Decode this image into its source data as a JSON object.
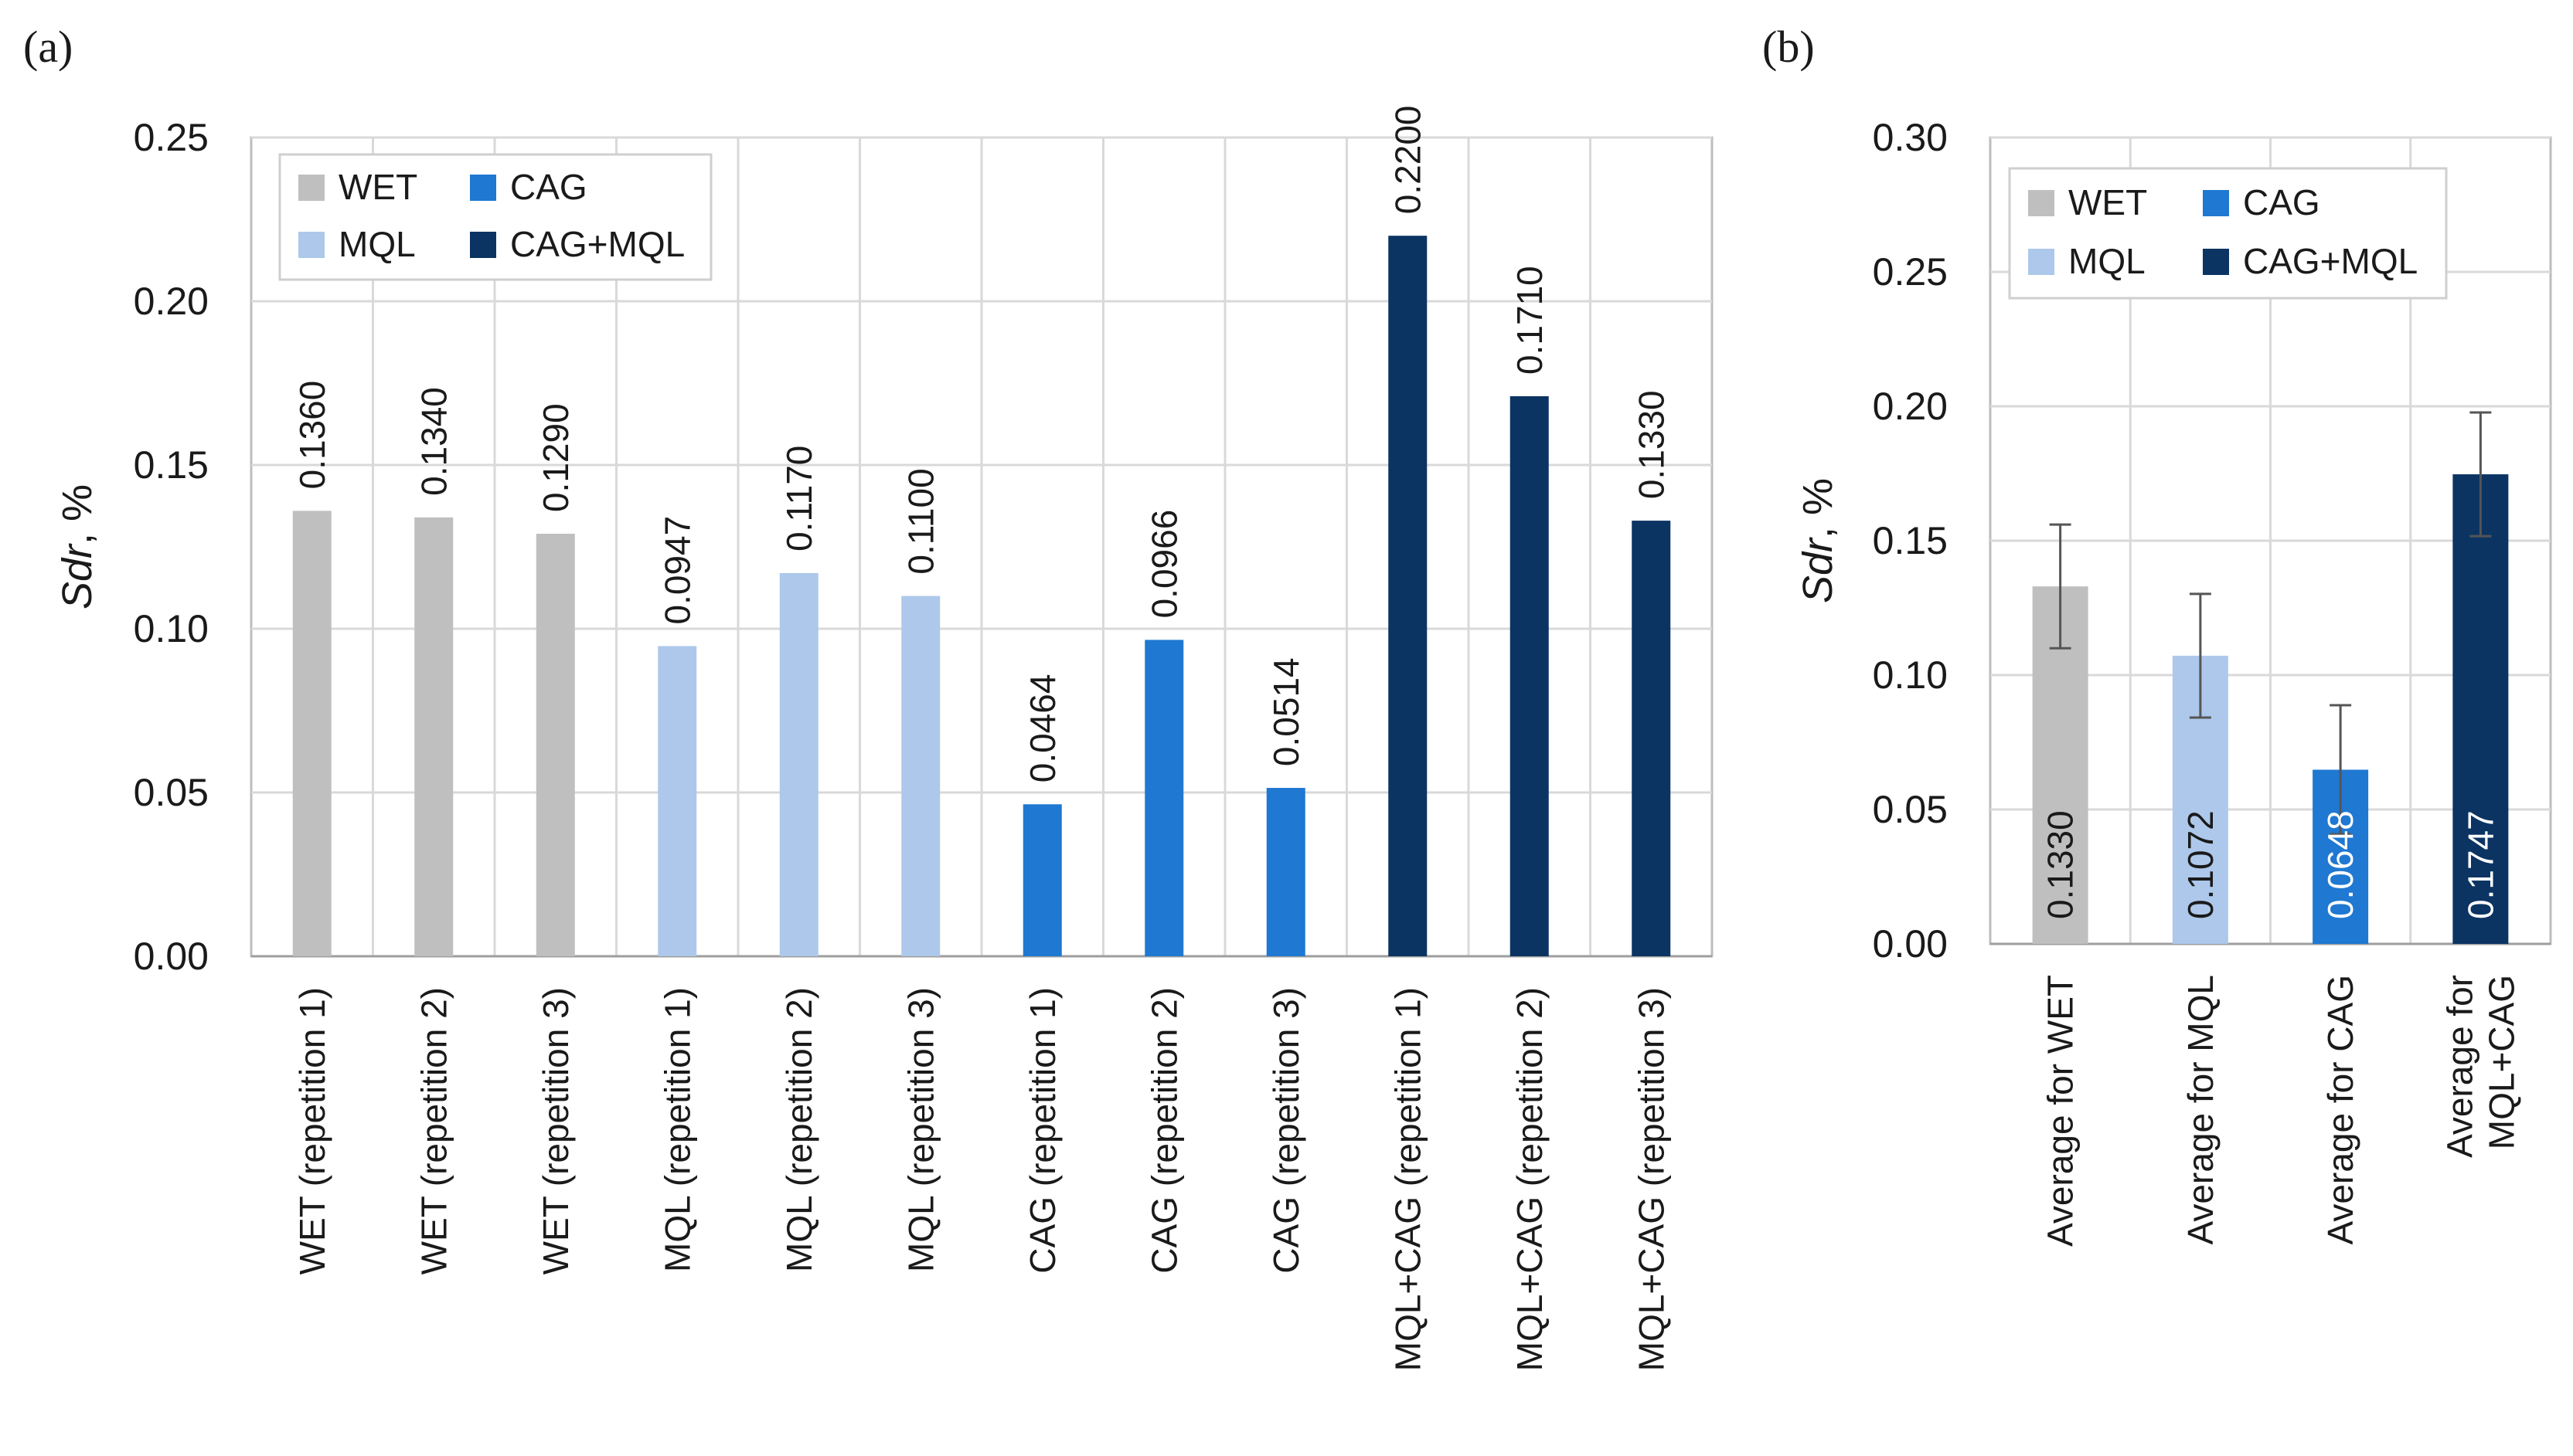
{
  "chart_data": [
    {
      "type": "bar",
      "panel_label": "(a)",
      "ylabel_italic": "Sdr",
      "ylabel_rest": ", %",
      "ylim": [
        0,
        0.25
      ],
      "yticks": [
        "0.00",
        "0.05",
        "0.10",
        "0.15",
        "0.20",
        "0.25"
      ],
      "grid": true,
      "legend_position": "top-left",
      "legend": [
        {
          "label": "WET",
          "color": "#bfbfbf"
        },
        {
          "label": "CAG",
          "color": "#1f78d1"
        },
        {
          "label": "MQL",
          "color": "#adc8ea"
        },
        {
          "label": "CAG+MQL",
          "color": "#0b3463"
        }
      ],
      "categories": [
        "WET (repetition 1)",
        "WET (repetition 2)",
        "WET (repetition 3)",
        "MQL (repetition 1)",
        "MQL (repetition 2)",
        "MQL (repetition 3)",
        "CAG (repetition 1)",
        "CAG (repetition 2)",
        "CAG (repetition 3)",
        "MQL+CAG (repetition 1)",
        "MQL+CAG (repetition 2)",
        "MQL+CAG (repetition 3)"
      ],
      "values": [
        0.136,
        0.134,
        0.129,
        0.0947,
        0.117,
        0.11,
        0.0464,
        0.0966,
        0.0514,
        0.22,
        0.171,
        0.133
      ],
      "value_labels": [
        "0.1360",
        "0.1340",
        "0.1290",
        "0.0947",
        "0.1170",
        "0.1100",
        "0.0464",
        "0.0966",
        "0.0514",
        "0.2200",
        "0.1710",
        "0.1330"
      ],
      "colors": [
        "#bfbfbf",
        "#bfbfbf",
        "#bfbfbf",
        "#adc8ea",
        "#adc8ea",
        "#adc8ea",
        "#1f78d1",
        "#1f78d1",
        "#1f78d1",
        "#0b3463",
        "#0b3463",
        "#0b3463"
      ]
    },
    {
      "type": "bar",
      "panel_label": "(b)",
      "ylabel_italic": "Sdr",
      "ylabel_rest": ", %",
      "ylim": [
        0,
        0.3
      ],
      "yticks": [
        "0.00",
        "0.05",
        "0.10",
        "0.15",
        "0.20",
        "0.25",
        "0.30"
      ],
      "grid": true,
      "legend_position": "top-left",
      "legend": [
        {
          "label": "WET",
          "color": "#bfbfbf"
        },
        {
          "label": "CAG",
          "color": "#1f78d1"
        },
        {
          "label": "MQL",
          "color": "#adc8ea"
        },
        {
          "label": "CAG+MQL",
          "color": "#0b3463"
        }
      ],
      "categories": [
        [
          "Average for WET"
        ],
        [
          "Average for MQL"
        ],
        [
          "Average for CAG"
        ],
        [
          "Average for",
          "MQL+CAG"
        ]
      ],
      "values": [
        0.133,
        0.1072,
        0.0648,
        0.1747
      ],
      "value_labels": [
        "0.1330",
        "0.1072",
        "0.0648",
        "0.1747"
      ],
      "errors": [
        0.023,
        0.023,
        0.024,
        0.023
      ],
      "colors": [
        "#bfbfbf",
        "#adc8ea",
        "#1f78d1",
        "#0b3463"
      ],
      "label_colors": [
        "#1a1a1a",
        "#1a1a1a",
        "#ffffff",
        "#ffffff"
      ]
    }
  ]
}
